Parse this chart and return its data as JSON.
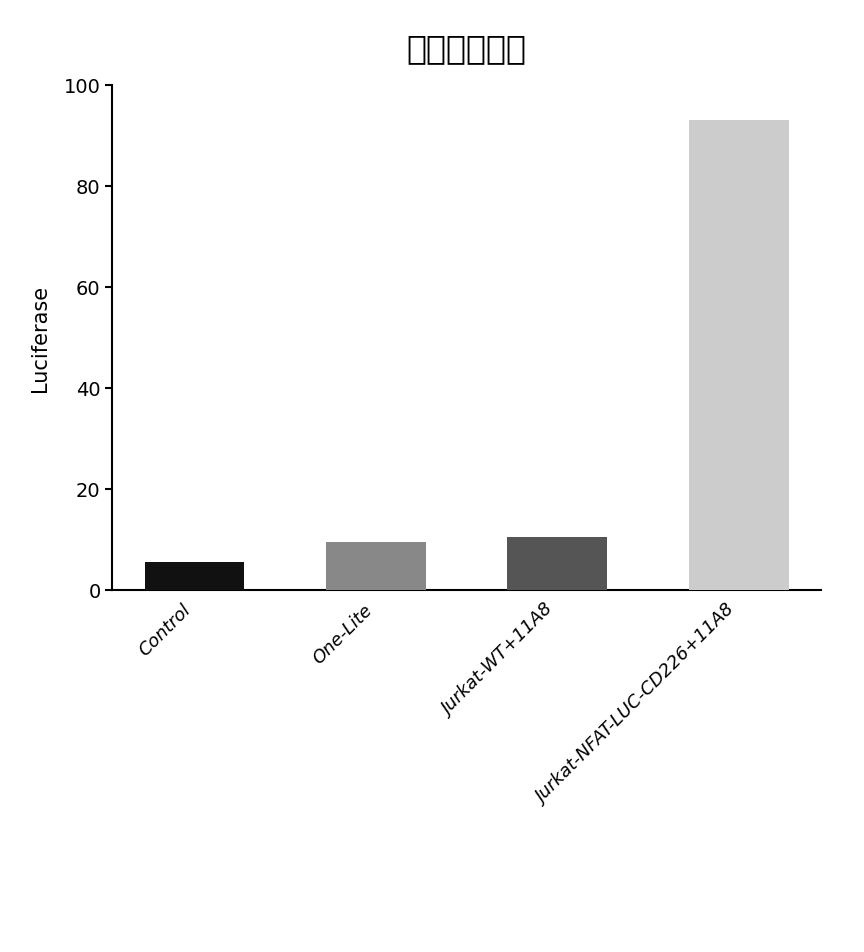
{
  "title": "报告功能鉴定",
  "categories": [
    "Control",
    "One-Lite",
    "Jurkat-WT+11A8",
    "Jurkat-NFAT-LUC-CD226+11A8"
  ],
  "values": [
    5.5,
    9.5,
    10.5,
    93
  ],
  "bar_colors": [
    "#111111",
    "#888888",
    "#555555",
    "#cccccc"
  ],
  "ylabel": "Luciferase",
  "ylim": [
    0,
    100
  ],
  "yticks": [
    0,
    20,
    40,
    60,
    80,
    100
  ],
  "background_color": "#ffffff",
  "title_fontsize": 24,
  "ylabel_fontsize": 15,
  "tick_fontsize": 14,
  "label_fontsize": 13,
  "bar_width": 0.55
}
